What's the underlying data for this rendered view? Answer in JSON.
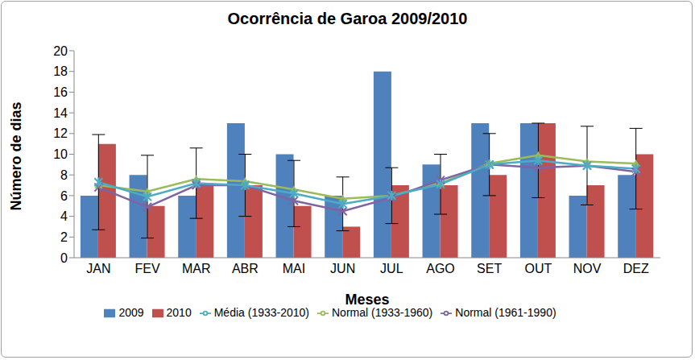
{
  "chart_data": {
    "type": "bar",
    "title": "Ocorrência de Garoa 2009/2010",
    "x_label": "Meses",
    "y_label": "Número de dias",
    "categories": [
      "JAN",
      "FEV",
      "MAR",
      "ABR",
      "MAI",
      "JUN",
      "JUL",
      "AGO",
      "SET",
      "OUT",
      "NOV",
      "DEZ"
    ],
    "ylim": [
      0,
      20
    ],
    "yticks": [
      0,
      2,
      4,
      6,
      8,
      10,
      12,
      14,
      16,
      18,
      20
    ],
    "grid": false,
    "legend": "bottom",
    "series": [
      {
        "name": "2009",
        "type": "bar",
        "color": "#4f81bd",
        "values": [
          6,
          8,
          6,
          13,
          10,
          6,
          18,
          9,
          13,
          13,
          6,
          8
        ]
      },
      {
        "name": "2010",
        "type": "bar",
        "color": "#c0504d",
        "values": [
          11,
          5,
          7,
          7,
          5,
          3,
          7,
          7,
          8,
          13,
          7,
          10
        ]
      },
      {
        "name": "Normal (1933-1960)",
        "type": "line",
        "color": "#9bbb59",
        "marker": "triangle",
        "values": [
          7.0,
          6.4,
          7.6,
          7.4,
          6.6,
          5.7,
          6.0,
          7.2,
          9.1,
          9.9,
          9.3,
          9.1
        ]
      },
      {
        "name": "Normal (1961-1990)",
        "type": "line",
        "color": "#8064a2",
        "marker": "cross",
        "values": [
          6.8,
          4.9,
          7.0,
          7.0,
          5.5,
          4.5,
          5.8,
          7.5,
          9.0,
          8.7,
          8.9,
          8.3
        ]
      },
      {
        "name": "Média (1933-2010)",
        "type": "line",
        "color": "#4bacc6",
        "marker": "star",
        "values": [
          7.3,
          5.9,
          7.2,
          7.0,
          6.2,
          5.2,
          6.0,
          7.1,
          9.0,
          9.4,
          8.9,
          8.6
        ],
        "error": [
          4.6,
          4.0,
          3.4,
          3.0,
          3.2,
          2.6,
          2.7,
          2.9,
          3.0,
          3.6,
          3.8,
          3.9
        ]
      }
    ]
  }
}
